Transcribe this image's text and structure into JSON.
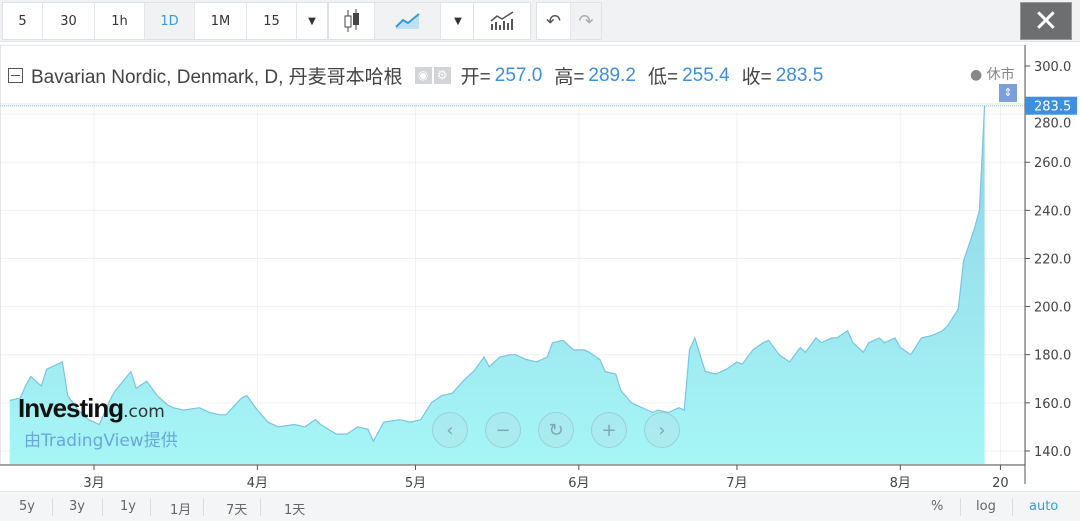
{
  "toolbar": {
    "intervals": [
      "5",
      "30",
      "1h",
      "1D",
      "1M",
      "15"
    ],
    "active_interval": "1D",
    "close_label": "✕"
  },
  "legend": {
    "title": "Bavarian Nordic, Denmark, D, 丹麦哥本哈根",
    "open_label": "开=",
    "open": "257.0",
    "high_label": "高=",
    "high": "289.2",
    "low_label": "低=",
    "low": "255.4",
    "close_label": "收=",
    "close": "283.5",
    "status": "● 休市"
  },
  "branding": {
    "logo_main": "Investing",
    "logo_suffix": ".com",
    "provided_by": "由TradingView提供"
  },
  "bottom": {
    "ranges": [
      "5y",
      "3y",
      "1y",
      "1月",
      "7天",
      "1天"
    ],
    "percent": "%",
    "log": "log",
    "auto": "auto"
  },
  "colors": {
    "accent": "#3d8fe0",
    "area_top": "#8fd3e6",
    "area_bottom": "#a6f6f6",
    "line": "#7cc3e6",
    "price_label": "#3d8fe0"
  },
  "chart_data": {
    "type": "area",
    "title": "",
    "x_tick_labels": [
      {
        "date": "03-01",
        "label": "3月"
      },
      {
        "date": "04-01",
        "label": "4月"
      },
      {
        "date": "05-01",
        "label": "5月"
      },
      {
        "date": "06-01",
        "label": "6月"
      },
      {
        "date": "07-01",
        "label": "7月"
      },
      {
        "date": "08-01",
        "label": "8月"
      },
      {
        "date": "08-20",
        "label": "20"
      }
    ],
    "y_ticks": [
      300,
      280,
      260,
      240,
      220,
      200,
      180,
      160,
      140
    ],
    "ylim": [
      137,
      304
    ],
    "last_price": "283.5",
    "grid": true,
    "points": [
      [
        "02-13",
        161
      ],
      [
        "02-15",
        162
      ],
      [
        "02-16",
        167
      ],
      [
        "02-17",
        171
      ],
      [
        "02-19",
        167
      ],
      [
        "02-20",
        174
      ],
      [
        "02-23",
        177
      ],
      [
        "02-24",
        163
      ],
      [
        "02-26",
        157
      ],
      [
        "02-28",
        153
      ],
      [
        "03-02",
        151
      ],
      [
        "03-04",
        161
      ],
      [
        "03-05",
        165
      ],
      [
        "03-08",
        173
      ],
      [
        "03-09",
        166
      ],
      [
        "03-11",
        169
      ],
      [
        "03-13",
        163
      ],
      [
        "03-15",
        159
      ],
      [
        "03-16",
        158
      ],
      [
        "03-18",
        157
      ],
      [
        "03-21",
        158
      ],
      [
        "03-23",
        156
      ],
      [
        "03-25",
        155
      ],
      [
        "03-26",
        155
      ],
      [
        "03-29",
        162
      ],
      [
        "03-30",
        163
      ],
      [
        "04-01",
        157
      ],
      [
        "04-03",
        152
      ],
      [
        "04-05",
        150
      ],
      [
        "04-08",
        151
      ],
      [
        "04-10",
        150
      ],
      [
        "04-12",
        153
      ],
      [
        "04-13",
        151
      ],
      [
        "04-16",
        147
      ],
      [
        "04-18",
        147
      ],
      [
        "04-20",
        150
      ],
      [
        "04-22",
        149
      ],
      [
        "04-23",
        144
      ],
      [
        "04-25",
        152
      ],
      [
        "04-28",
        153
      ],
      [
        "04-30",
        152
      ],
      [
        "05-02",
        153
      ],
      [
        "05-04",
        160
      ],
      [
        "05-06",
        163
      ],
      [
        "05-08",
        164
      ],
      [
        "05-10",
        169
      ],
      [
        "05-12",
        173
      ],
      [
        "05-14",
        179
      ],
      [
        "05-15",
        175
      ],
      [
        "05-17",
        179
      ],
      [
        "05-19",
        180
      ],
      [
        "05-20",
        180
      ],
      [
        "05-22",
        178
      ],
      [
        "05-24",
        177
      ],
      [
        "05-26",
        179
      ],
      [
        "05-27",
        185
      ],
      [
        "05-29",
        186
      ],
      [
        "05-31",
        182
      ],
      [
        "06-02",
        182
      ],
      [
        "06-03",
        181
      ],
      [
        "06-05",
        178
      ],
      [
        "06-06",
        173
      ],
      [
        "06-08",
        172
      ],
      [
        "06-09",
        165
      ],
      [
        "06-11",
        160
      ],
      [
        "06-13",
        158
      ],
      [
        "06-15",
        156
      ],
      [
        "06-16",
        157
      ],
      [
        "06-18",
        156
      ],
      [
        "06-20",
        158
      ],
      [
        "06-21",
        157
      ],
      [
        "06-22",
        182
      ],
      [
        "06-23",
        187
      ],
      [
        "06-25",
        173
      ],
      [
        "06-27",
        172
      ],
      [
        "06-29",
        174
      ],
      [
        "07-01",
        177
      ],
      [
        "07-02",
        176
      ],
      [
        "07-04",
        182
      ],
      [
        "07-06",
        185
      ],
      [
        "07-07",
        186
      ],
      [
        "07-09",
        180
      ],
      [
        "07-11",
        177
      ],
      [
        "07-13",
        183
      ],
      [
        "07-14",
        181
      ],
      [
        "07-16",
        187
      ],
      [
        "07-17",
        185
      ],
      [
        "07-19",
        187
      ],
      [
        "07-20",
        187
      ],
      [
        "07-22",
        190
      ],
      [
        "07-23",
        185
      ],
      [
        "07-25",
        181
      ],
      [
        "07-26",
        185
      ],
      [
        "07-28",
        187
      ],
      [
        "07-29",
        185
      ],
      [
        "07-31",
        187
      ],
      [
        "08-01",
        183
      ],
      [
        "08-03",
        180
      ],
      [
        "08-05",
        187
      ],
      [
        "08-07",
        188
      ],
      [
        "08-09",
        190
      ],
      [
        "08-10",
        192
      ],
      [
        "08-12",
        199
      ],
      [
        "08-13",
        219
      ],
      [
        "08-15",
        232
      ],
      [
        "08-16",
        240
      ],
      [
        "08-17",
        283.5
      ]
    ]
  }
}
